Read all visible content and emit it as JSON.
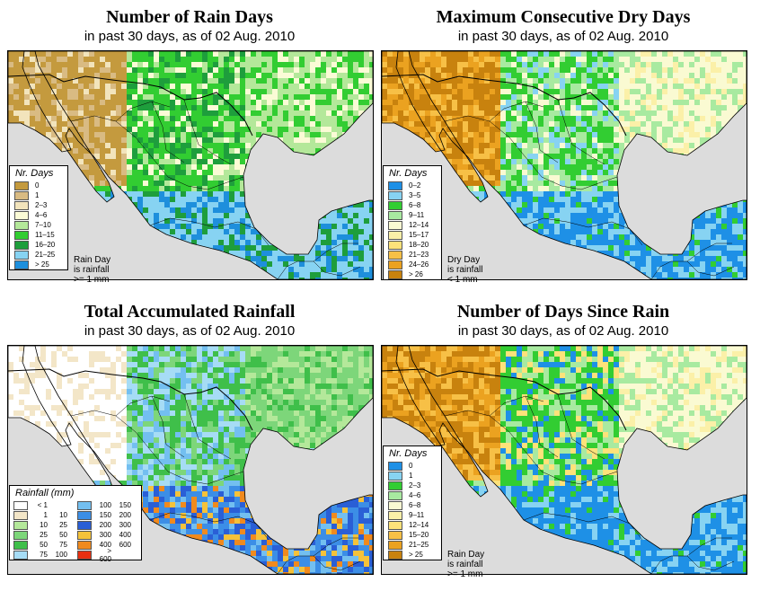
{
  "panels": [
    {
      "id": "rain-days",
      "title": "Number of Rain Days",
      "subtitle": "in past 30 days, as of  02 Aug. 2010",
      "legend_title": "Nr. Days",
      "legend": [
        {
          "label": "0",
          "color": "#c49a3e"
        },
        {
          "label": "1",
          "color": "#d9bb83"
        },
        {
          "label": "2–3",
          "color": "#f2e4bc"
        },
        {
          "label": "4–6",
          "color": "#fbfbd6"
        },
        {
          "label": "7–10",
          "color": "#b4e89a"
        },
        {
          "label": "11–15",
          "color": "#32cd32"
        },
        {
          "label": "16–20",
          "color": "#1e9e3c"
        },
        {
          "label": "21–25",
          "color": "#87d3f2"
        },
        {
          "label": "> 25",
          "color": "#1e8fdc"
        }
      ],
      "note": [
        "Rain Day",
        "is rainfall",
        ">= 1 mm"
      ],
      "palette": [
        "#c49a3e",
        "#d9bb83",
        "#f2e4bc",
        "#fbfbd6",
        "#b4e89a",
        "#32cd32",
        "#1e9e3c",
        "#87d3f2",
        "#1e8fdc"
      ]
    },
    {
      "id": "dry-days",
      "title": "Maximum Consecutive Dry Days",
      "subtitle": "in past 30 days, as of  02 Aug. 2010",
      "legend_title": "Nr. Days",
      "legend": [
        {
          "label": "0–2",
          "color": "#1e90e6"
        },
        {
          "label": "3–5",
          "color": "#87d3f2"
        },
        {
          "label": "6–8",
          "color": "#32cd32"
        },
        {
          "label": "9–11",
          "color": "#a8eaa0"
        },
        {
          "label": "12–14",
          "color": "#fafad2"
        },
        {
          "label": "15–17",
          "color": "#fbf0a8"
        },
        {
          "label": "18–20",
          "color": "#fde27a"
        },
        {
          "label": "21–23",
          "color": "#f7c046"
        },
        {
          "label": "24–26",
          "color": "#eba220"
        },
        {
          "label": "> 26",
          "color": "#c8820e"
        }
      ],
      "note": [
        "Dry Day",
        "is rainfall",
        "< 1 mm"
      ],
      "palette": [
        "#1e90e6",
        "#87d3f2",
        "#32cd32",
        "#a8eaa0",
        "#fafad2",
        "#fbf0a8",
        "#fde27a",
        "#f7c046",
        "#eba220",
        "#c8820e"
      ]
    },
    {
      "id": "total-rainfall",
      "title": "Total Accumulated Rainfall",
      "subtitle": "in past 30 days, as of  02 Aug. 2010",
      "legend_title": "Rainfall (mm)",
      "legend": [
        {
          "a": "< 1",
          "b": "",
          "color": "#ffffff"
        },
        {
          "a": "1",
          "b": "10",
          "color": "#f3e6c8"
        },
        {
          "a": "10",
          "b": "25",
          "color": "#b4e89a"
        },
        {
          "a": "25",
          "b": "50",
          "color": "#7dd67a"
        },
        {
          "a": "50",
          "b": "75",
          "color": "#3fbf4a"
        },
        {
          "a": "75",
          "b": "100",
          "color": "#a6dcf5"
        },
        {
          "a": "100",
          "b": "150",
          "color": "#73bff0"
        },
        {
          "a": "150",
          "b": "200",
          "color": "#3c8ee6"
        },
        {
          "a": "200",
          "b": "300",
          "color": "#2a5fd6"
        },
        {
          "a": "300",
          "b": "400",
          "color": "#f5c23a"
        },
        {
          "a": "400",
          "b": "600",
          "color": "#f08a1e"
        },
        {
          "a": "> 600",
          "b": "",
          "color": "#e83010"
        }
      ],
      "note": [],
      "palette": [
        "#ffffff",
        "#f3e6c8",
        "#b4e89a",
        "#7dd67a",
        "#3fbf4a",
        "#a6dcf5",
        "#73bff0",
        "#3c8ee6",
        "#2a5fd6",
        "#f5c23a",
        "#f08a1e",
        "#e83010"
      ]
    },
    {
      "id": "days-since-rain",
      "title": "Number of Days Since Rain",
      "subtitle": "in past 30 days, as of  02 Aug. 2010",
      "legend_title": "Nr. Days",
      "legend": [
        {
          "label": "0",
          "color": "#1e90e6"
        },
        {
          "label": "1",
          "color": "#87d3f2"
        },
        {
          "label": "2–3",
          "color": "#32cd32"
        },
        {
          "label": "4–6",
          "color": "#a8eaa0"
        },
        {
          "label": "6–8",
          "color": "#fafad2"
        },
        {
          "label": "9–11",
          "color": "#fbf0a8"
        },
        {
          "label": "12–14",
          "color": "#fde27a"
        },
        {
          "label": "15–20",
          "color": "#f7c046"
        },
        {
          "label": "21–25",
          "color": "#eba220"
        },
        {
          "label": "> 25",
          "color": "#c8820e"
        }
      ],
      "note": [
        "Rain Day",
        "is rainfall",
        ">= 1 mm"
      ],
      "palette": [
        "#1e90e6",
        "#87d3f2",
        "#32cd32",
        "#a8eaa0",
        "#fafad2",
        "#fbf0a8",
        "#fde27a",
        "#f7c046",
        "#eba220",
        "#c8820e"
      ]
    }
  ],
  "colors": {
    "ocean": "#dcdcdc",
    "border": "#000000"
  }
}
